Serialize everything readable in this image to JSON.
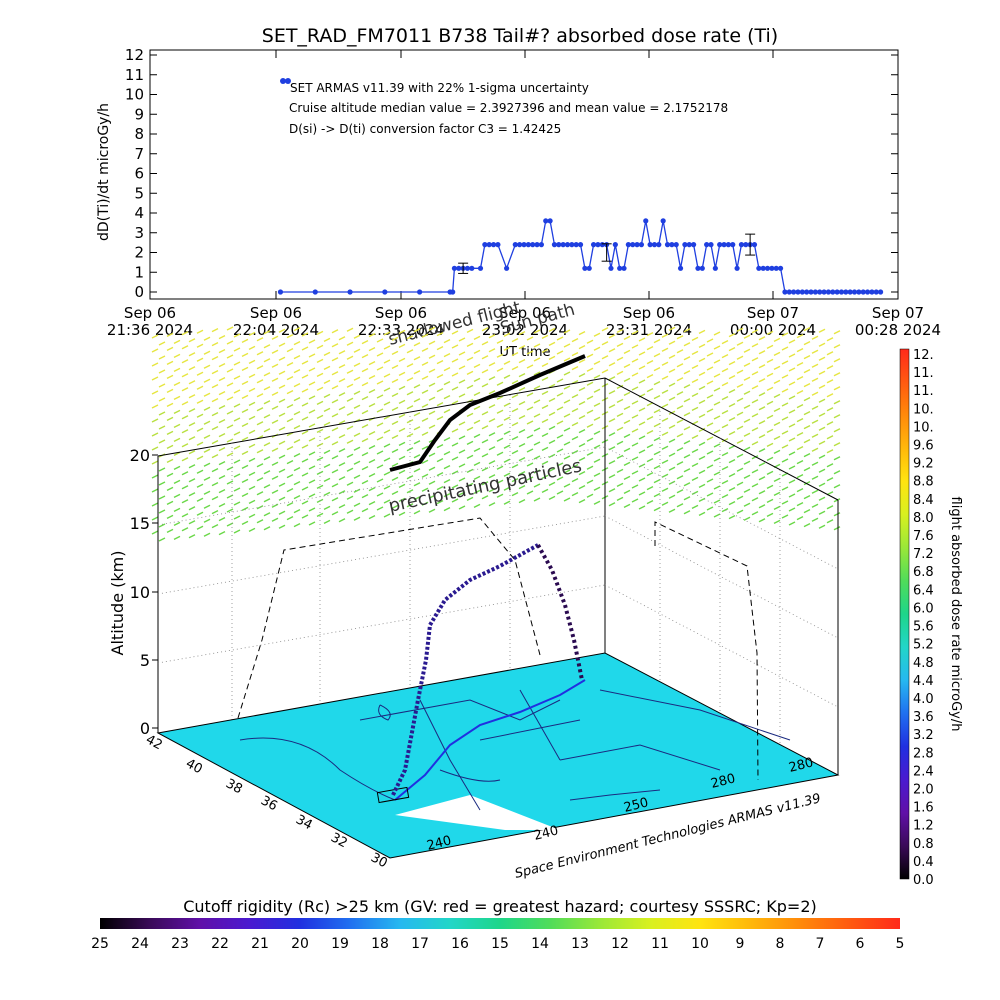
{
  "title": "SET_RAD_FM7011  B738 Tail#? absorbed dose rate (Ti)",
  "top_chart": {
    "ylabel": "dD(Ti)/dt microGy/h",
    "xlabel": "UT time",
    "y_ticks": [
      "0",
      "1",
      "2",
      "3",
      "4",
      "5",
      "6",
      "7",
      "8",
      "9",
      "10",
      "11",
      "12"
    ],
    "x_ticks": [
      {
        "line1": "Sep 06",
        "line2": "21:36 2024"
      },
      {
        "line1": "Sep 06",
        "line2": "22:04 2024"
      },
      {
        "line1": "Sep 06",
        "line2": "22:33 2024"
      },
      {
        "line1": "Sep 06",
        "line2": "23:02 2024"
      },
      {
        "line1": "Sep 06",
        "line2": "23:31 2024"
      },
      {
        "line1": "Sep 07",
        "line2": "00:00 2024"
      },
      {
        "line1": "Sep 07",
        "line2": "00:28 2024"
      }
    ],
    "annotations": {
      "legend": "SET ARMAS v11.39 with 22% 1-sigma uncertainty",
      "median_mean": "Cruise altitude median value = 2.3927396 and mean value = 2.1752178",
      "conversion": "D(si) -> D(ti) conversion factor C3 = 1.42425"
    },
    "overlay_labels": [
      "shadowed flight",
      "Sun path"
    ]
  },
  "chart_data": [
    {
      "type": "line",
      "title": "SET_RAD_FM7011  B738 Tail#? absorbed dose rate (Ti)",
      "xlabel": "UT time",
      "ylabel": "dD(Ti)/dt microGy/h",
      "ylim": [
        0,
        12
      ],
      "xlim_minutes_after_2136": [
        0,
        172
      ],
      "grid": false,
      "legend_position": "top-left",
      "series": [
        {
          "name": "SET ARMAS v11.39 with 22% 1-sigma uncertainty",
          "color": "#1f3fe0",
          "x_minutes_after_2136": [
            30,
            38,
            46,
            54,
            62,
            69,
            69.6,
            70,
            71,
            72,
            73,
            74,
            76,
            77,
            78,
            79,
            80,
            82,
            84,
            85,
            86,
            87,
            88,
            89,
            90,
            91,
            92,
            93,
            94,
            95,
            96,
            97,
            98,
            99,
            100,
            101,
            102,
            103,
            104,
            105,
            106,
            107,
            108,
            109,
            110,
            111,
            112,
            113,
            114,
            115,
            116,
            117,
            118,
            119,
            120,
            121,
            122,
            123,
            124,
            125,
            126,
            127,
            128,
            129,
            130,
            131,
            132,
            133,
            134,
            135,
            136,
            137,
            138,
            139,
            140,
            141,
            142,
            143,
            144,
            145,
            146,
            147,
            148,
            149,
            150,
            151,
            152,
            153,
            154,
            155,
            156,
            157,
            158,
            159,
            160,
            161,
            162,
            163,
            164,
            165,
            166,
            167,
            168
          ],
          "y_values": [
            0,
            0,
            0,
            0,
            0,
            0,
            0,
            1.2,
            1.2,
            1.2,
            1.2,
            1.2,
            1.2,
            2.4,
            2.4,
            2.4,
            2.4,
            1.2,
            2.4,
            2.4,
            2.4,
            2.4,
            2.4,
            2.4,
            2.4,
            3.6,
            3.6,
            2.4,
            2.4,
            2.4,
            2.4,
            2.4,
            2.4,
            2.4,
            1.2,
            1.2,
            2.4,
            2.4,
            2.4,
            2.4,
            1.2,
            2.4,
            1.2,
            1.2,
            2.4,
            2.4,
            2.4,
            2.4,
            3.6,
            2.4,
            2.4,
            2.4,
            3.6,
            2.4,
            2.4,
            2.4,
            1.2,
            2.4,
            2.4,
            2.4,
            1.2,
            1.2,
            2.4,
            2.4,
            1.2,
            2.4,
            2.4,
            2.4,
            2.4,
            1.2,
            2.4,
            2.4,
            2.4,
            2.4,
            1.2,
            1.2,
            1.2,
            1.2,
            1.2,
            1.2,
            0,
            0,
            0,
            0,
            0,
            0,
            0,
            0,
            0,
            0,
            0,
            0,
            0,
            0,
            0,
            0,
            0,
            0,
            0,
            0,
            0,
            0,
            0
          ]
        }
      ],
      "error_bars": [
        {
          "x_minutes_after_2136": 72,
          "y": 1.2,
          "plus_minus": 0.26
        },
        {
          "x_minutes_after_2136": 105,
          "y": 2.0,
          "plus_minus": 0.44
        },
        {
          "x_minutes_after_2136": 138,
          "y": 2.4,
          "plus_minus": 0.53
        }
      ]
    },
    {
      "type": "scatter",
      "title": "",
      "zlabel": "Altitude (km)",
      "z_ticks": [
        "0",
        "5",
        "10",
        "15",
        "20"
      ],
      "latitude_ticks": [
        "30",
        "32",
        "34",
        "36",
        "38",
        "40",
        "42"
      ],
      "longitude_ticks": [
        "240",
        "240",
        "250",
        "280",
        "280"
      ],
      "credit": "Space Environment Technologies ARMAS v11.39",
      "labels": [
        "precipitating particles"
      ],
      "colorbar_right": {
        "label": "flight absorbed dose rate microGy/h",
        "ticks": [
          "12.",
          "11.",
          "11.",
          "10.",
          "10.",
          "9.6",
          "9.2",
          "8.8",
          "8.4",
          "8.0",
          "7.6",
          "7.2",
          "6.8",
          "6.4",
          "6.0",
          "5.6",
          "5.2",
          "4.8",
          "4.4",
          "4.0",
          "3.6",
          "3.2",
          "2.8",
          "2.4",
          "2.0",
          "1.6",
          "1.2",
          "0.8",
          "0.4",
          "0.0"
        ],
        "colors": [
          "#ff2a1a",
          "#ff5a10",
          "#ff8a0a",
          "#ffb80a",
          "#ffe410",
          "#d8f020",
          "#9ae838",
          "#50dc5a",
          "#1ed68a",
          "#22d6c8",
          "#26b8f0",
          "#2070f0",
          "#2030e0",
          "#4a1ad0",
          "#6010a8",
          "#3a0a58",
          "#000000"
        ]
      },
      "colorbar_bottom": {
        "label": "Cutoff rigidity (Rc) >25 km (GV: red = greatest hazard; courtesy SSSRC; Kp=2)",
        "ticks": [
          "25",
          "24",
          "23",
          "22",
          "21",
          "20",
          "19",
          "18",
          "17",
          "16",
          "15",
          "14",
          "13",
          "12",
          "11",
          "10",
          "9",
          "8",
          "7",
          "6",
          "5"
        ],
        "colors": [
          "#000000",
          "#3a0a58",
          "#6010a8",
          "#4a1ad0",
          "#2030e0",
          "#2070f0",
          "#26b8f0",
          "#22d6c8",
          "#1ed68a",
          "#50dc5a",
          "#9ae838",
          "#d8f020",
          "#ffe410",
          "#ffb80a",
          "#ff8a0a",
          "#ff5a10",
          "#ff2a1a"
        ]
      }
    }
  ]
}
